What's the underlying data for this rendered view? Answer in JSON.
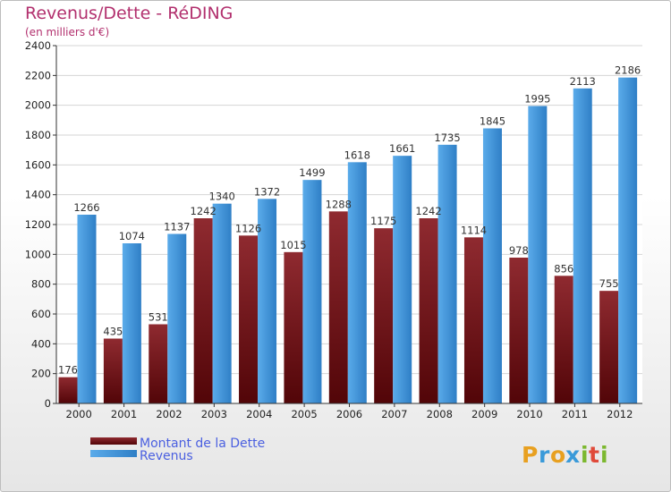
{
  "header": {
    "title": "Revenus/Dette - RéDING",
    "subtitle": "(en milliers d'€)"
  },
  "chart_data": {
    "type": "bar",
    "title": "Revenus/Dette - RéDING",
    "subtitle": "(en milliers d'€)",
    "xlabel": "",
    "ylabel": "",
    "ylim": [
      0,
      2400
    ],
    "yticks": [
      0,
      200,
      400,
      600,
      800,
      1000,
      1200,
      1400,
      1600,
      1800,
      2000,
      2200,
      2400
    ],
    "grid": true,
    "legend_position": "bottom-left",
    "categories": [
      "2000",
      "2001",
      "2002",
      "2003",
      "2004",
      "2005",
      "2006",
      "2007",
      "2008",
      "2009",
      "2010",
      "2011",
      "2012"
    ],
    "series": [
      {
        "name": "Montant de la Dette",
        "color": "#7a1a1e",
        "values": [
          176,
          435,
          531,
          1242,
          1126,
          1015,
          1288,
          1175,
          1242,
          1114,
          978,
          856,
          755
        ]
      },
      {
        "name": "Revenus",
        "color": "#3a8fd8",
        "values": [
          1266,
          1074,
          1137,
          1340,
          1372,
          1499,
          1618,
          1661,
          1735,
          1845,
          1995,
          2113,
          2186
        ]
      }
    ]
  },
  "branding": {
    "logo_text": "Proxiti"
  }
}
